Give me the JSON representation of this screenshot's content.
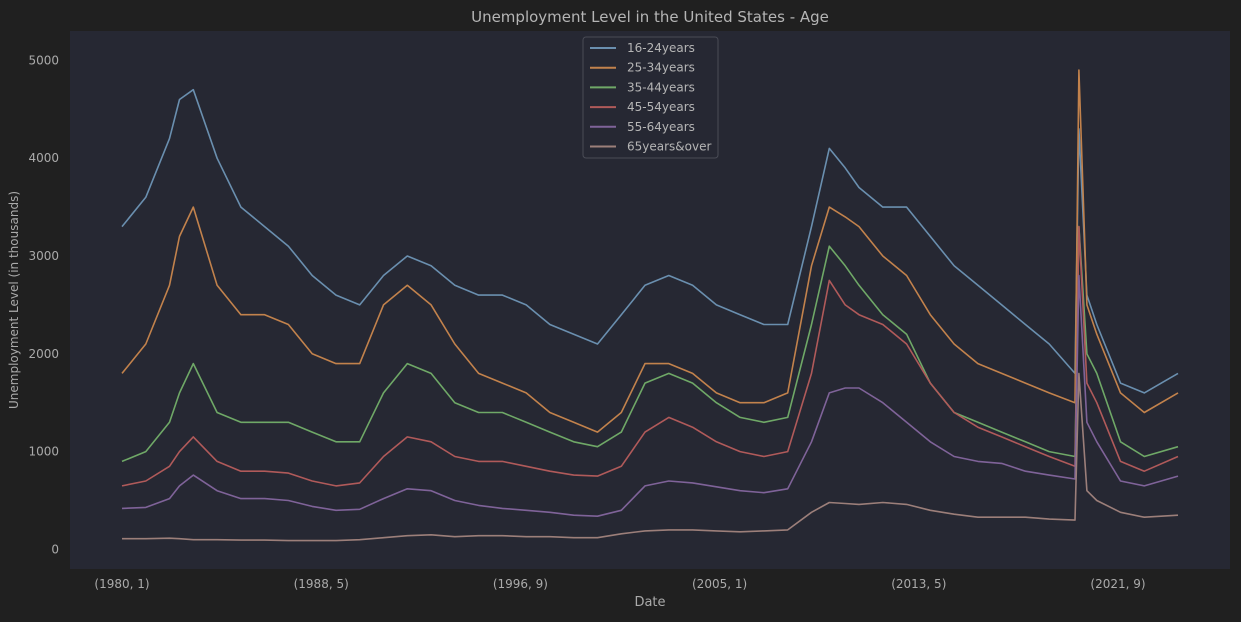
{
  "chart_data": {
    "type": "line",
    "title": "Unemployment Level in the United States - Age",
    "xlabel": "Date",
    "ylabel": "Unemployment Level (in thousands)",
    "x_tick_labels": [
      "(1980, 1)",
      "(1988, 5)",
      "(1996, 9)",
      "(2005, 1)",
      "(2013, 5)",
      "(2021, 9)"
    ],
    "y_ticks": [
      0,
      1000,
      2000,
      3000,
      4000,
      5000
    ],
    "ylim": [
      -200,
      5300
    ],
    "x_range": [
      "1980-01",
      "2024-06"
    ],
    "grid": false,
    "legend_position": "top-center",
    "x_dates": [
      "1980-01",
      "1981-01",
      "1982-01",
      "1982-06",
      "1983-01",
      "1984-01",
      "1985-01",
      "1986-01",
      "1987-01",
      "1988-01",
      "1989-01",
      "1990-01",
      "1991-01",
      "1992-01",
      "1993-01",
      "1994-01",
      "1995-01",
      "1996-01",
      "1997-01",
      "1998-01",
      "1999-01",
      "2000-01",
      "2001-01",
      "2002-01",
      "2003-01",
      "2004-01",
      "2005-01",
      "2006-01",
      "2007-01",
      "2008-01",
      "2009-01",
      "2009-10",
      "2010-06",
      "2011-01",
      "2012-01",
      "2013-01",
      "2014-01",
      "2015-01",
      "2016-01",
      "2017-01",
      "2018-01",
      "2019-01",
      "2020-02",
      "2020-04",
      "2020-08",
      "2021-01",
      "2022-01",
      "2023-01",
      "2024-06"
    ],
    "series": [
      {
        "name": "16-24years",
        "color": "#6a8faf",
        "values": [
          3300,
          3600,
          4200,
          4600,
          4700,
          4000,
          3500,
          3300,
          3100,
          2800,
          2600,
          2500,
          2800,
          3000,
          2900,
          2700,
          2600,
          2600,
          2500,
          2300,
          2200,
          2100,
          2400,
          2700,
          2800,
          2700,
          2500,
          2400,
          2300,
          2300,
          3300,
          4100,
          3900,
          3700,
          3500,
          3500,
          3200,
          2900,
          2700,
          2500,
          2300,
          2100,
          1800,
          4300,
          2600,
          2300,
          1700,
          1600,
          1800
        ]
      },
      {
        "name": "25-34years",
        "color": "#c2824c",
        "values": [
          1800,
          2100,
          2700,
          3200,
          3500,
          2700,
          2400,
          2400,
          2300,
          2000,
          1900,
          1900,
          2500,
          2700,
          2500,
          2100,
          1800,
          1700,
          1600,
          1400,
          1300,
          1200,
          1400,
          1900,
          1900,
          1800,
          1600,
          1500,
          1500,
          1600,
          2900,
          3500,
          3400,
          3300,
          3000,
          2800,
          2400,
          2100,
          1900,
          1800,
          1700,
          1600,
          1500,
          4900,
          2500,
          2200,
          1600,
          1400,
          1600
        ]
      },
      {
        "name": "35-44years",
        "color": "#6fa867",
        "values": [
          900,
          1000,
          1300,
          1600,
          1900,
          1400,
          1300,
          1300,
          1300,
          1200,
          1100,
          1100,
          1600,
          1900,
          1800,
          1500,
          1400,
          1400,
          1300,
          1200,
          1100,
          1050,
          1200,
          1700,
          1800,
          1700,
          1500,
          1350,
          1300,
          1350,
          2300,
          3100,
          2900,
          2700,
          2400,
          2200,
          1700,
          1400,
          1300,
          1200,
          1100,
          1000,
          950,
          3300,
          2000,
          1800,
          1100,
          950,
          1050
        ]
      },
      {
        "name": "45-54years",
        "color": "#b05a5a",
        "values": [
          650,
          700,
          850,
          1000,
          1150,
          900,
          800,
          800,
          780,
          700,
          650,
          680,
          950,
          1150,
          1100,
          950,
          900,
          900,
          850,
          800,
          760,
          750,
          850,
          1200,
          1350,
          1250,
          1100,
          1000,
          950,
          1000,
          1800,
          2750,
          2500,
          2400,
          2300,
          2100,
          1700,
          1400,
          1250,
          1150,
          1050,
          950,
          850,
          3300,
          1700,
          1500,
          900,
          800,
          950
        ]
      },
      {
        "name": "55-64years",
        "color": "#7f6399",
        "values": [
          420,
          430,
          520,
          650,
          760,
          600,
          520,
          520,
          500,
          440,
          400,
          410,
          520,
          620,
          600,
          500,
          450,
          420,
          400,
          380,
          350,
          340,
          400,
          650,
          700,
          680,
          640,
          600,
          580,
          620,
          1100,
          1600,
          1650,
          1650,
          1500,
          1300,
          1100,
          950,
          900,
          880,
          800,
          760,
          720,
          2800,
          1300,
          1100,
          700,
          650,
          750
        ]
      },
      {
        "name": "65years&over",
        "color": "#9c7f7a",
        "values": [
          110,
          110,
          115,
          110,
          100,
          100,
          95,
          95,
          90,
          90,
          90,
          100,
          120,
          140,
          150,
          130,
          140,
          140,
          130,
          130,
          120,
          120,
          160,
          190,
          200,
          200,
          190,
          180,
          190,
          200,
          380,
          480,
          470,
          460,
          480,
          460,
          400,
          360,
          330,
          330,
          330,
          310,
          300,
          1800,
          600,
          500,
          380,
          330,
          350
        ]
      }
    ]
  }
}
